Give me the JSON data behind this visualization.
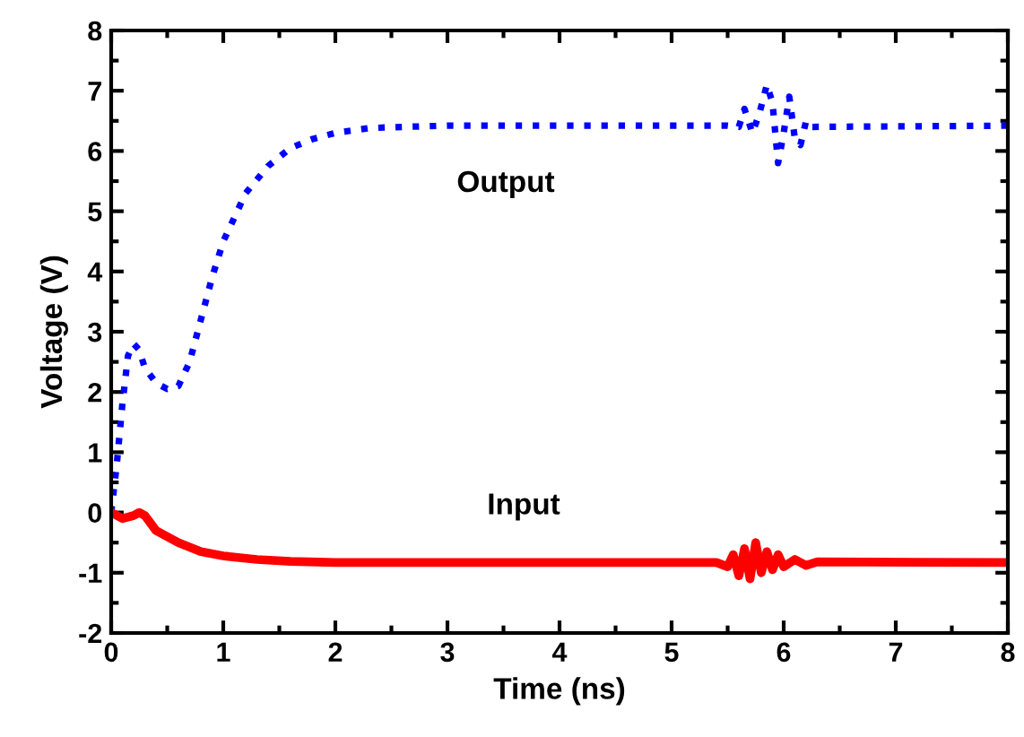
{
  "chart_data": {
    "type": "line",
    "xlabel": "Time (ns)",
    "ylabel": "Voltage (V)",
    "xlim": [
      0,
      8
    ],
    "xticks": [
      0,
      1,
      2,
      3,
      4,
      5,
      6,
      7,
      8
    ],
    "ylim": [
      -2,
      8
    ],
    "yticks": [
      -2,
      -1,
      0,
      1,
      2,
      3,
      4,
      5,
      6,
      7,
      8
    ],
    "grid": false,
    "legend": false,
    "series": [
      {
        "name": "Output",
        "color": "#0000ff",
        "line_style": "dotted",
        "x": [
          0,
          0.05,
          0.1,
          0.15,
          0.2,
          0.25,
          0.3,
          0.4,
          0.5,
          0.6,
          0.7,
          0.8,
          0.9,
          1.0,
          1.1,
          1.2,
          1.4,
          1.6,
          1.8,
          2.0,
          2.3,
          2.6,
          3.0,
          5.5,
          5.6,
          5.65,
          5.72,
          5.78,
          5.85,
          5.9,
          5.95,
          6.0,
          6.05,
          6.1,
          6.15,
          6.2,
          6.25,
          8
        ],
        "values": [
          0,
          0.8,
          1.8,
          2.6,
          2.8,
          2.7,
          2.4,
          2.15,
          2.05,
          2.1,
          2.5,
          3.2,
          3.9,
          4.5,
          4.9,
          5.3,
          5.75,
          6.05,
          6.2,
          6.3,
          6.38,
          6.4,
          6.42,
          6.42,
          6.4,
          6.7,
          6.3,
          6.6,
          7.1,
          6.8,
          5.8,
          6.3,
          6.9,
          6.2,
          6.1,
          6.5,
          6.4,
          6.42
        ]
      },
      {
        "name": "Input",
        "color": "#ff0000",
        "line_style": "solid",
        "x": [
          0,
          0.1,
          0.2,
          0.25,
          0.3,
          0.4,
          0.5,
          0.6,
          0.8,
          1.0,
          1.3,
          1.6,
          2.0,
          3.0,
          5.4,
          5.5,
          5.55,
          5.6,
          5.65,
          5.7,
          5.75,
          5.8,
          5.85,
          5.9,
          5.95,
          6.0,
          6.1,
          6.2,
          6.3,
          8
        ],
        "values": [
          0,
          -0.1,
          -0.05,
          0,
          -0.05,
          -0.3,
          -0.4,
          -0.5,
          -0.65,
          -0.72,
          -0.78,
          -0.81,
          -0.83,
          -0.83,
          -0.83,
          -0.9,
          -0.7,
          -1.05,
          -0.6,
          -1.1,
          -0.5,
          -1.0,
          -0.65,
          -0.95,
          -0.7,
          -0.9,
          -0.78,
          -0.88,
          -0.82,
          -0.83
        ]
      }
    ]
  }
}
